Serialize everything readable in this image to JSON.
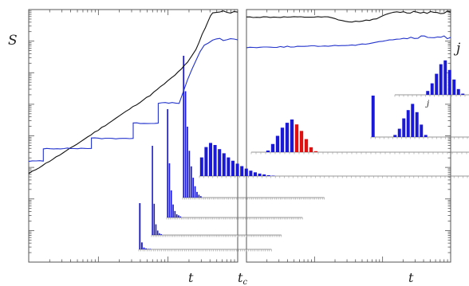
{
  "chart_data": {
    "type": "line",
    "labels": {
      "y_left": "S",
      "y_right": "j",
      "x_left": "t",
      "x_mid": "t",
      "x_mid_sub": "c",
      "x_right": "t",
      "inset_axis": "j"
    },
    "axes": {
      "x_scale": "log",
      "y_scale": "log",
      "grid": false
    },
    "colors": {
      "series_S": "#111111",
      "series_j": "#2233cc",
      "hist": "#1a1ad6",
      "hist_highlight": "#e01010",
      "axis": "#555555"
    },
    "left_panel": {
      "series": [
        {
          "name": "",
          "points": [
            [
              0.0,
              0.35
            ],
            [
              0.18,
              0.44
            ],
            [
              0.4,
              0.56
            ],
            [
              0.58,
              0.66
            ],
            [
              0.7,
              0.74
            ],
            [
              0.76,
              0.79
            ],
            [
              0.8,
              0.84
            ],
            [
              0.83,
              0.9
            ],
            [
              0.86,
              0.96
            ],
            [
              0.88,
              0.99
            ],
            [
              1.0,
              0.99
            ]
          ]
        },
        {
          "name": "",
          "points": [
            [
              0.0,
              0.4
            ],
            [
              0.07,
              0.4
            ],
            [
              0.07,
              0.45
            ],
            [
              0.3,
              0.45
            ],
            [
              0.3,
              0.49
            ],
            [
              0.5,
              0.49
            ],
            [
              0.5,
              0.55
            ],
            [
              0.62,
              0.55
            ],
            [
              0.62,
              0.63
            ],
            [
              0.72,
              0.63
            ],
            [
              0.76,
              0.72
            ],
            [
              0.8,
              0.8
            ],
            [
              0.84,
              0.86
            ],
            [
              0.88,
              0.88
            ],
            [
              1.0,
              0.88
            ]
          ]
        }
      ]
    },
    "right_panel": {
      "series": [
        {
          "name": "",
          "points": [
            [
              0.0,
              0.97
            ],
            [
              0.4,
              0.97
            ],
            [
              0.5,
              0.95
            ],
            [
              0.62,
              0.96
            ],
            [
              0.72,
              0.99
            ],
            [
              1.0,
              0.99
            ]
          ]
        },
        {
          "name": "",
          "points": [
            [
              0.0,
              0.85
            ],
            [
              0.35,
              0.855
            ],
            [
              0.55,
              0.86
            ],
            [
              0.7,
              0.88
            ],
            [
              0.84,
              0.89
            ],
            [
              1.0,
              0.89
            ]
          ]
        }
      ]
    },
    "histograms": [
      {
        "values": [
          1.0,
          0.15,
          0.04,
          0.02,
          0.01,
          0.01,
          0,
          0,
          0,
          0,
          0,
          0,
          0,
          0,
          0,
          0,
          0,
          0,
          0,
          0,
          0,
          0,
          0,
          0,
          0,
          0,
          0,
          0,
          0,
          0,
          0,
          0,
          0,
          0,
          0,
          0,
          0,
          0,
          0,
          0,
          0,
          0,
          0,
          0,
          0,
          0,
          0,
          0,
          0,
          0,
          0,
          0,
          0,
          0,
          0,
          0,
          0,
          0,
          0,
          0,
          0,
          0,
          0,
          0
        ]
      },
      {
        "values": [
          1.0,
          0.35,
          0.12,
          0.05,
          0.02,
          0.01,
          0,
          0,
          0,
          0,
          0,
          0,
          0,
          0,
          0,
          0,
          0,
          0,
          0,
          0,
          0,
          0,
          0,
          0,
          0,
          0,
          0,
          0,
          0,
          0,
          0,
          0,
          0,
          0,
          0,
          0,
          0,
          0,
          0,
          0,
          0,
          0,
          0,
          0,
          0,
          0,
          0,
          0,
          0,
          0,
          0,
          0,
          0,
          0,
          0,
          0,
          0,
          0,
          0,
          0,
          0,
          0,
          0,
          0,
          0,
          0,
          0,
          0,
          0,
          0,
          0,
          0,
          0,
          0
        ]
      },
      {
        "values": [
          1.0,
          0.5,
          0.25,
          0.12,
          0.06,
          0.03,
          0.02,
          0.01,
          0,
          0,
          0,
          0,
          0,
          0,
          0,
          0,
          0,
          0,
          0,
          0,
          0,
          0,
          0,
          0,
          0,
          0,
          0,
          0,
          0,
          0,
          0,
          0,
          0,
          0,
          0,
          0,
          0,
          0,
          0,
          0,
          0,
          0,
          0,
          0,
          0,
          0,
          0,
          0,
          0,
          0,
          0,
          0,
          0,
          0,
          0,
          0,
          0,
          0,
          0,
          0,
          0,
          0,
          0,
          0,
          0,
          0,
          0,
          0,
          0,
          0,
          0,
          0,
          0,
          0
        ]
      },
      {
        "values": [
          1.0,
          0.75,
          0.5,
          0.33,
          0.22,
          0.14,
          0.08,
          0.04,
          0.02,
          0.01,
          0,
          0,
          0,
          0,
          0,
          0,
          0,
          0,
          0,
          0,
          0,
          0,
          0,
          0,
          0,
          0,
          0,
          0,
          0,
          0,
          0,
          0,
          0,
          0,
          0,
          0,
          0,
          0,
          0,
          0,
          0,
          0,
          0,
          0,
          0,
          0,
          0,
          0,
          0,
          0,
          0,
          0,
          0,
          0,
          0,
          0,
          0,
          0,
          0,
          0,
          0,
          0,
          0,
          0,
          0,
          0,
          0,
          0,
          0,
          0,
          0,
          0,
          0,
          0
        ]
      },
      {
        "values": [
          0.45,
          0.7,
          0.8,
          0.75,
          0.65,
          0.55,
          0.45,
          0.37,
          0.3,
          0.24,
          0.18,
          0.13,
          0.09,
          0.06,
          0.04,
          0.02,
          0.01,
          0,
          0,
          0,
          0,
          0,
          0,
          0,
          0,
          0,
          0,
          0,
          0,
          0,
          0,
          0,
          0,
          0,
          0,
          0,
          0,
          0,
          0,
          0,
          0,
          0,
          0,
          0,
          0,
          0,
          0,
          0,
          0,
          0,
          0,
          0,
          0,
          0,
          0,
          0,
          0,
          0,
          0,
          0,
          0,
          0,
          0,
          0,
          0,
          0,
          0,
          0,
          0,
          0,
          0
        ]
      },
      {
        "values": [
          0,
          0,
          0,
          0.05,
          0.25,
          0.5,
          0.75,
          0.9,
          1.0,
          0.85,
          0.65,
          0.4,
          0.15,
          0.03,
          0,
          0,
          0,
          0,
          0,
          0,
          0,
          0,
          0,
          0,
          0,
          0,
          0,
          0,
          0,
          0,
          0,
          0,
          0,
          0,
          0,
          0,
          0,
          0,
          0,
          0,
          0,
          0,
          0,
          0,
          0,
          0,
          0
        ],
        "highlight": [
          9,
          10,
          11,
          12,
          13
        ]
      },
      {
        "values": [
          1.0,
          0,
          0,
          0,
          0,
          0.05,
          0.2,
          0.45,
          0.65,
          0.8,
          0.6,
          0.3,
          0.05,
          0,
          0,
          0,
          0,
          0,
          0,
          0,
          0,
          0,
          0,
          0,
          0,
          0,
          0,
          0,
          0,
          0
        ]
      },
      {
        "values": [
          0,
          0,
          0,
          0,
          0,
          0,
          0,
          0.1,
          0.3,
          0.55,
          0.8,
          0.9,
          0.65,
          0.4,
          0.15,
          0.03,
          0,
          0,
          0,
          0,
          0,
          0,
          0,
          0,
          0,
          0,
          0,
          0
        ]
      }
    ]
  }
}
